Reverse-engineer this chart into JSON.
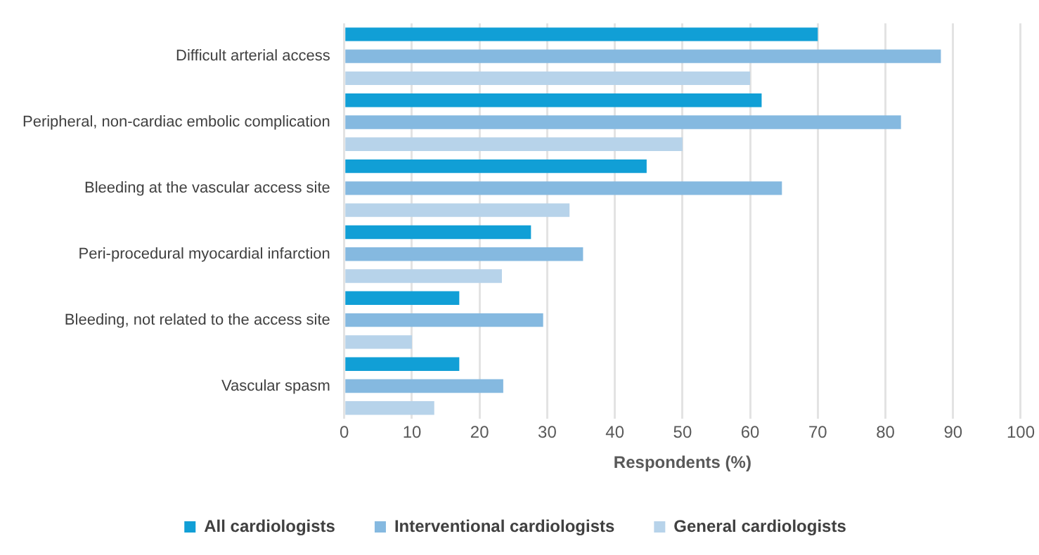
{
  "chart_data": {
    "type": "bar",
    "orientation": "horizontal",
    "xlabel": "Respondents (%)",
    "categories": [
      "Difficult arterial access",
      "Peripheral, non-cardiac embolic complication",
      "Bleeding at the vascular access site",
      "Peri-procedural myocardial infarction",
      "Bleeding, not related to the access site",
      "Vascular spasm"
    ],
    "series": [
      {
        "name": "All cardiologists",
        "color": "#119fd6",
        "values": [
          70,
          61.7,
          44.7,
          27.6,
          17,
          17
        ]
      },
      {
        "name": "Interventional cardiologists",
        "color": "#85b9e0",
        "values": [
          88.2,
          82.3,
          64.7,
          35.3,
          29.4,
          23.5
        ]
      },
      {
        "name": "General cardiologists",
        "color": "#b7d3ea",
        "values": [
          60,
          50,
          33.3,
          23.3,
          10,
          13.3
        ]
      }
    ],
    "xlim": [
      0,
      100
    ],
    "xticks": [
      0,
      10,
      20,
      30,
      40,
      50,
      60,
      70,
      80,
      90,
      100
    ],
    "grid": "x",
    "legend": "bottom"
  }
}
